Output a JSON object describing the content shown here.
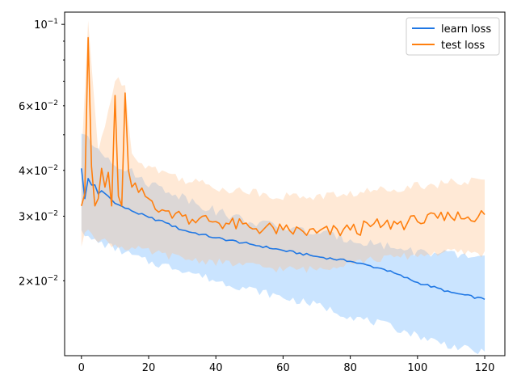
{
  "chart_data": {
    "type": "line",
    "title": "",
    "xlabel": "",
    "ylabel": "",
    "yscale": "log",
    "xlim": [
      -5,
      126
    ],
    "ylim": [
      0.0125,
      0.108
    ],
    "grid": false,
    "legend_position": "top-right",
    "x_ticks": [
      {
        "value": 0,
        "label": "0"
      },
      {
        "value": 20,
        "label": "20"
      },
      {
        "value": 40,
        "label": "40"
      },
      {
        "value": 60,
        "label": "60"
      },
      {
        "value": 80,
        "label": "80"
      },
      {
        "value": 100,
        "label": "100"
      },
      {
        "value": 120,
        "label": "120"
      }
    ],
    "y_major_ticks": [
      {
        "value": 0.1,
        "base": "10",
        "exp": "−1"
      }
    ],
    "y_minor_ticks": [
      {
        "value": 0.02,
        "mant": "2",
        "base": "10",
        "exp": "−2"
      },
      {
        "value": 0.03,
        "mant": "3",
        "base": "10",
        "exp": "−2"
      },
      {
        "value": 0.04,
        "mant": "4",
        "base": "10",
        "exp": "−2"
      },
      {
        "value": 0.06,
        "mant": "6",
        "base": "10",
        "exp": "−2"
      }
    ],
    "y_minor_unlabeled": [
      0.05,
      0.07,
      0.08,
      0.09
    ],
    "times_symbol": "×",
    "series": [
      {
        "name": "learn loss",
        "color": "#1f77e4",
        "band_color": "#66b2ff",
        "anchors": [
          [
            0,
            0.0405
          ],
          [
            1,
            0.0335
          ],
          [
            2,
            0.038
          ],
          [
            3,
            0.0365
          ],
          [
            4,
            0.0365
          ],
          [
            5,
            0.0345
          ],
          [
            6,
            0.0352
          ],
          [
            8,
            0.034
          ],
          [
            10,
            0.0325
          ],
          [
            15,
            0.031
          ],
          [
            20,
            0.0298
          ],
          [
            25,
            0.0288
          ],
          [
            30,
            0.0275
          ],
          [
            40,
            0.0262
          ],
          [
            50,
            0.0252
          ],
          [
            60,
            0.0242
          ],
          [
            70,
            0.0233
          ],
          [
            80,
            0.0226
          ],
          [
            90,
            0.0215
          ],
          [
            100,
            0.0198
          ],
          [
            110,
            0.0186
          ],
          [
            120,
            0.0178
          ]
        ],
        "band_lower_anchors": [
          [
            0,
            0.028
          ],
          [
            2,
            0.026
          ],
          [
            5,
            0.0255
          ],
          [
            10,
            0.0245
          ],
          [
            20,
            0.0225
          ],
          [
            30,
            0.0215
          ],
          [
            40,
            0.02
          ],
          [
            50,
            0.019
          ],
          [
            60,
            0.018
          ],
          [
            70,
            0.0172
          ],
          [
            80,
            0.016
          ],
          [
            90,
            0.0152
          ],
          [
            100,
            0.0142
          ],
          [
            110,
            0.0133
          ],
          [
            120,
            0.0127
          ]
        ],
        "band_upper_anchors": [
          [
            0,
            0.051
          ],
          [
            3,
            0.047
          ],
          [
            5,
            0.046
          ],
          [
            10,
            0.042
          ],
          [
            20,
            0.037
          ],
          [
            30,
            0.034
          ],
          [
            40,
            0.031
          ],
          [
            50,
            0.029
          ],
          [
            60,
            0.028
          ],
          [
            70,
            0.027
          ],
          [
            80,
            0.026
          ],
          [
            90,
            0.025
          ],
          [
            100,
            0.024
          ],
          [
            110,
            0.0235
          ],
          [
            120,
            0.0232
          ]
        ]
      },
      {
        "name": "test loss",
        "color": "#ff7f0e",
        "band_color": "#ffc08a",
        "anchors": [
          [
            0,
            0.032
          ],
          [
            1,
            0.0345
          ],
          [
            2,
            0.092
          ],
          [
            3,
            0.041
          ],
          [
            4,
            0.032
          ],
          [
            5,
            0.0335
          ],
          [
            6,
            0.0405
          ],
          [
            7,
            0.036
          ],
          [
            8,
            0.0395
          ],
          [
            9,
            0.032
          ],
          [
            10,
            0.064
          ],
          [
            11,
            0.034
          ],
          [
            12,
            0.032
          ],
          [
            13,
            0.065
          ],
          [
            14,
            0.04
          ],
          [
            15,
            0.036
          ],
          [
            20,
            0.0335
          ],
          [
            25,
            0.031
          ],
          [
            30,
            0.03
          ],
          [
            35,
            0.0295
          ],
          [
            40,
            0.029
          ],
          [
            50,
            0.028
          ],
          [
            60,
            0.0275
          ],
          [
            70,
            0.027
          ],
          [
            80,
            0.0275
          ],
          [
            90,
            0.0285
          ],
          [
            100,
            0.029
          ],
          [
            110,
            0.0298
          ],
          [
            120,
            0.0303
          ]
        ],
        "band_lower_anchors": [
          [
            0,
            0.025
          ],
          [
            2,
            0.028
          ],
          [
            5,
            0.026
          ],
          [
            10,
            0.025
          ],
          [
            20,
            0.024
          ],
          [
            30,
            0.023
          ],
          [
            40,
            0.0225
          ],
          [
            50,
            0.022
          ],
          [
            60,
            0.0215
          ],
          [
            70,
            0.0215
          ],
          [
            80,
            0.0225
          ],
          [
            90,
            0.023
          ],
          [
            100,
            0.0235
          ],
          [
            110,
            0.024
          ],
          [
            120,
            0.0237
          ]
        ],
        "band_upper_anchors": [
          [
            0,
            0.043
          ],
          [
            2,
            0.1
          ],
          [
            5,
            0.045
          ],
          [
            10,
            0.07
          ],
          [
            13,
            0.07
          ],
          [
            15,
            0.044
          ],
          [
            20,
            0.041
          ],
          [
            30,
            0.038
          ],
          [
            40,
            0.036
          ],
          [
            50,
            0.035
          ],
          [
            60,
            0.034
          ],
          [
            70,
            0.034
          ],
          [
            80,
            0.0345
          ],
          [
            90,
            0.0355
          ],
          [
            100,
            0.0365
          ],
          [
            110,
            0.037
          ],
          [
            120,
            0.0375
          ]
        ]
      }
    ]
  }
}
